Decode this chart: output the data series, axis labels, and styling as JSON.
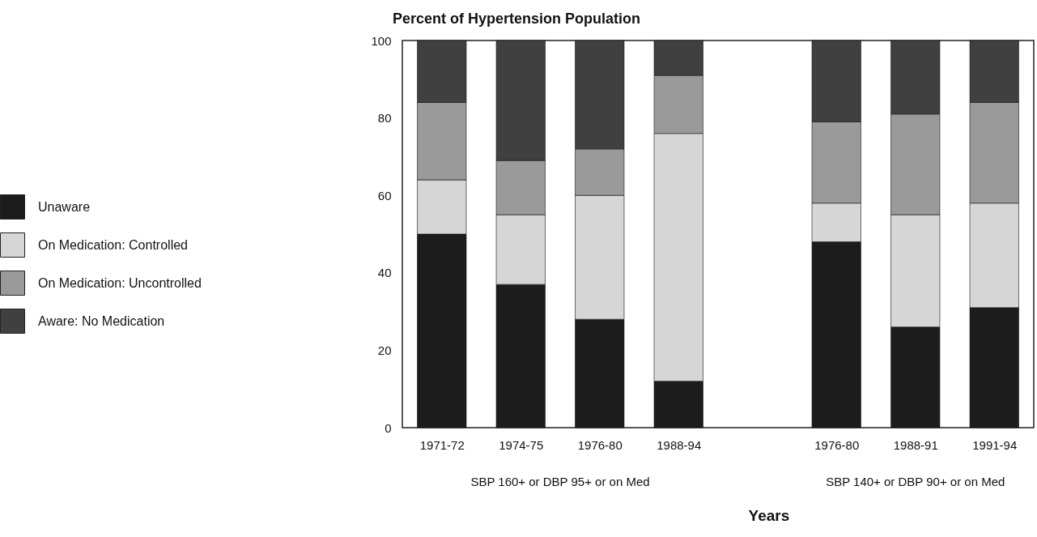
{
  "chart_data": {
    "type": "bar",
    "title": "Percent of Hypertension Population",
    "xlabel": "Years",
    "categories": [
      "1971-72",
      "1974-75",
      "1976-80",
      "1988-94",
      null,
      "1976-80",
      "1988-91",
      "1991-94"
    ],
    "series": [
      {
        "name": "Unaware",
        "color": "#1c1c1c",
        "values": [
          50,
          37,
          28,
          12,
          null,
          48,
          26,
          31
        ]
      },
      {
        "name": "On Medication: Controlled",
        "color": "#d6d6d6",
        "values": [
          14,
          18,
          32,
          64,
          null,
          10,
          29,
          27
        ]
      },
      {
        "name": "On Medication: Uncontrolled",
        "color": "#9a9a9a",
        "values": [
          20,
          14,
          12,
          15,
          null,
          21,
          26,
          26
        ]
      },
      {
        "name": "Aware: No Medication",
        "color": "#404040",
        "values": [
          16,
          31,
          28,
          9,
          null,
          21,
          19,
          16
        ]
      }
    ],
    "stacked": true,
    "ylim": [
      0,
      100
    ],
    "yticks": [
      0,
      20,
      40,
      60,
      80,
      100
    ],
    "grid": false,
    "legend": "left",
    "annotations": [
      "SBP 160+ or DBP 95+ or on Med",
      "SBP 140+ or DBP 90+ or on Med"
    ]
  }
}
